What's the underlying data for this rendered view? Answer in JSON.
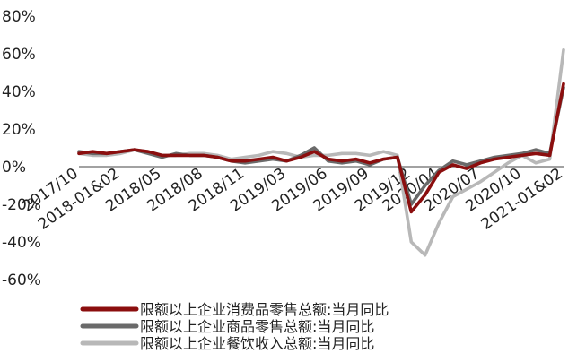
{
  "chart_data": {
    "type": "line",
    "title": "",
    "xlabel": "",
    "ylabel": "",
    "ylim": [
      -60,
      80
    ],
    "yticks": [
      -60,
      -40,
      -20,
      0,
      20,
      40,
      60,
      80
    ],
    "ytick_labels": [
      "-60%",
      "-40%",
      "-20%",
      "0%",
      "20%",
      "40%",
      "60%",
      "80%"
    ],
    "grid": false,
    "legend_position": "bottom",
    "x_tick_labels": [
      {
        "i": 0,
        "label": "2017/10"
      },
      {
        "i": 3,
        "label": "2018-01&02"
      },
      {
        "i": 6,
        "label": "2018/05"
      },
      {
        "i": 9,
        "label": "2018/08"
      },
      {
        "i": 12,
        "label": "2018/11"
      },
      {
        "i": 15,
        "label": "2019/03"
      },
      {
        "i": 18,
        "label": "2019/06"
      },
      {
        "i": 21,
        "label": "2019/09"
      },
      {
        "i": 24,
        "label": "2019/12"
      },
      {
        "i": 26,
        "label": "2020/04"
      },
      {
        "i": 29,
        "label": "2020/07"
      },
      {
        "i": 32,
        "label": "2020/10"
      },
      {
        "i": 35,
        "label": "2021-01&02"
      }
    ],
    "series": [
      {
        "name": "限额以上企业消费品零售总额:当月同比",
        "color": "#8b0e0e",
        "values": [
          7,
          8,
          7,
          8,
          9,
          8,
          6,
          6,
          6,
          6,
          5,
          3,
          3,
          4,
          5,
          3,
          5,
          8,
          4,
          3,
          4,
          2,
          4,
          5,
          -24,
          -15,
          -3,
          1,
          -1,
          2,
          4,
          5,
          6,
          7,
          6,
          44
        ]
      },
      {
        "name": "限额以上企业商品零售总额:当月同比",
        "color": "#6a6a6a",
        "values": [
          8,
          7,
          7,
          8,
          9,
          7,
          5,
          7,
          6,
          6,
          5,
          3,
          2,
          3,
          4,
          3,
          6,
          10,
          3,
          2,
          3,
          1,
          4,
          5,
          -20,
          -10,
          -2,
          3,
          1,
          3,
          5,
          6,
          7,
          9,
          7,
          42
        ]
      },
      {
        "name": "限额以上企业餐饮收入总额:当月同比",
        "color": "#b8b8b8",
        "values": [
          7,
          6,
          6,
          7,
          9,
          8,
          6,
          6,
          7,
          7,
          6,
          4,
          5,
          6,
          8,
          7,
          5,
          6,
          6,
          7,
          7,
          6,
          8,
          6,
          -40,
          -47,
          -30,
          -16,
          -12,
          -8,
          -3,
          2,
          6,
          2,
          4,
          62
        ]
      }
    ]
  }
}
